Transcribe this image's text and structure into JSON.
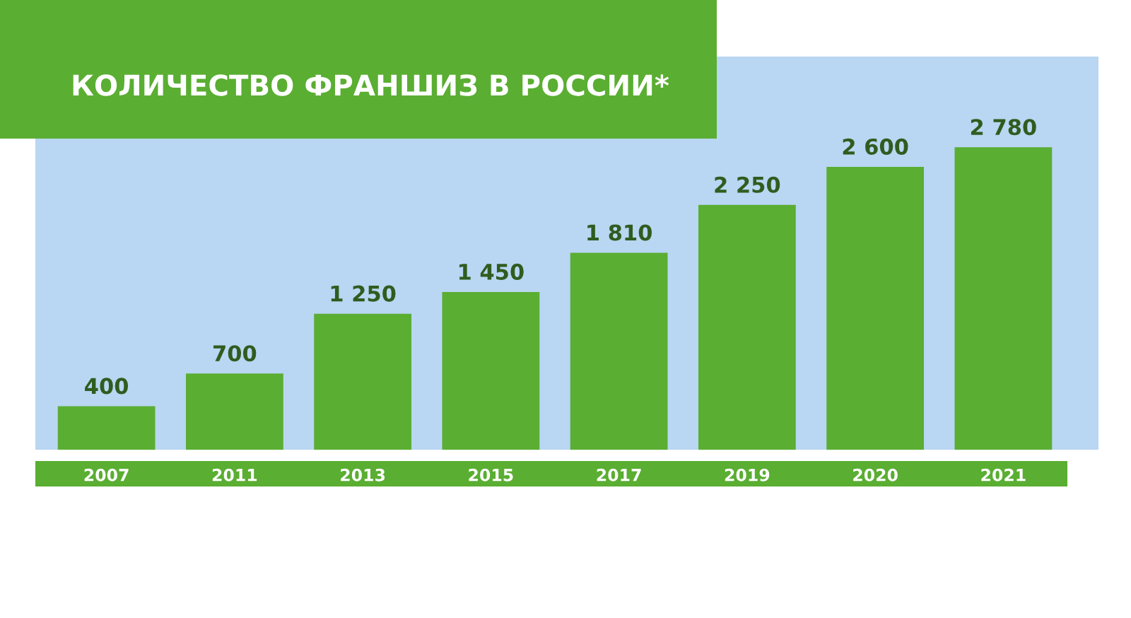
{
  "chart_data": {
    "type": "bar",
    "title": "КОЛИЧЕСТВО ФРАНШИЗ В РОССИИ*",
    "categories": [
      "2007",
      "2011",
      "2013",
      "2015",
      "2017",
      "2019",
      "2020",
      "2021"
    ],
    "values": [
      400,
      700,
      1250,
      1450,
      1810,
      2250,
      2600,
      2780
    ],
    "value_labels": [
      "400",
      "700",
      "1 250",
      "1 450",
      "1 810",
      "2 250",
      "2 600",
      "2 780"
    ],
    "color": "#5aae32"
  }
}
